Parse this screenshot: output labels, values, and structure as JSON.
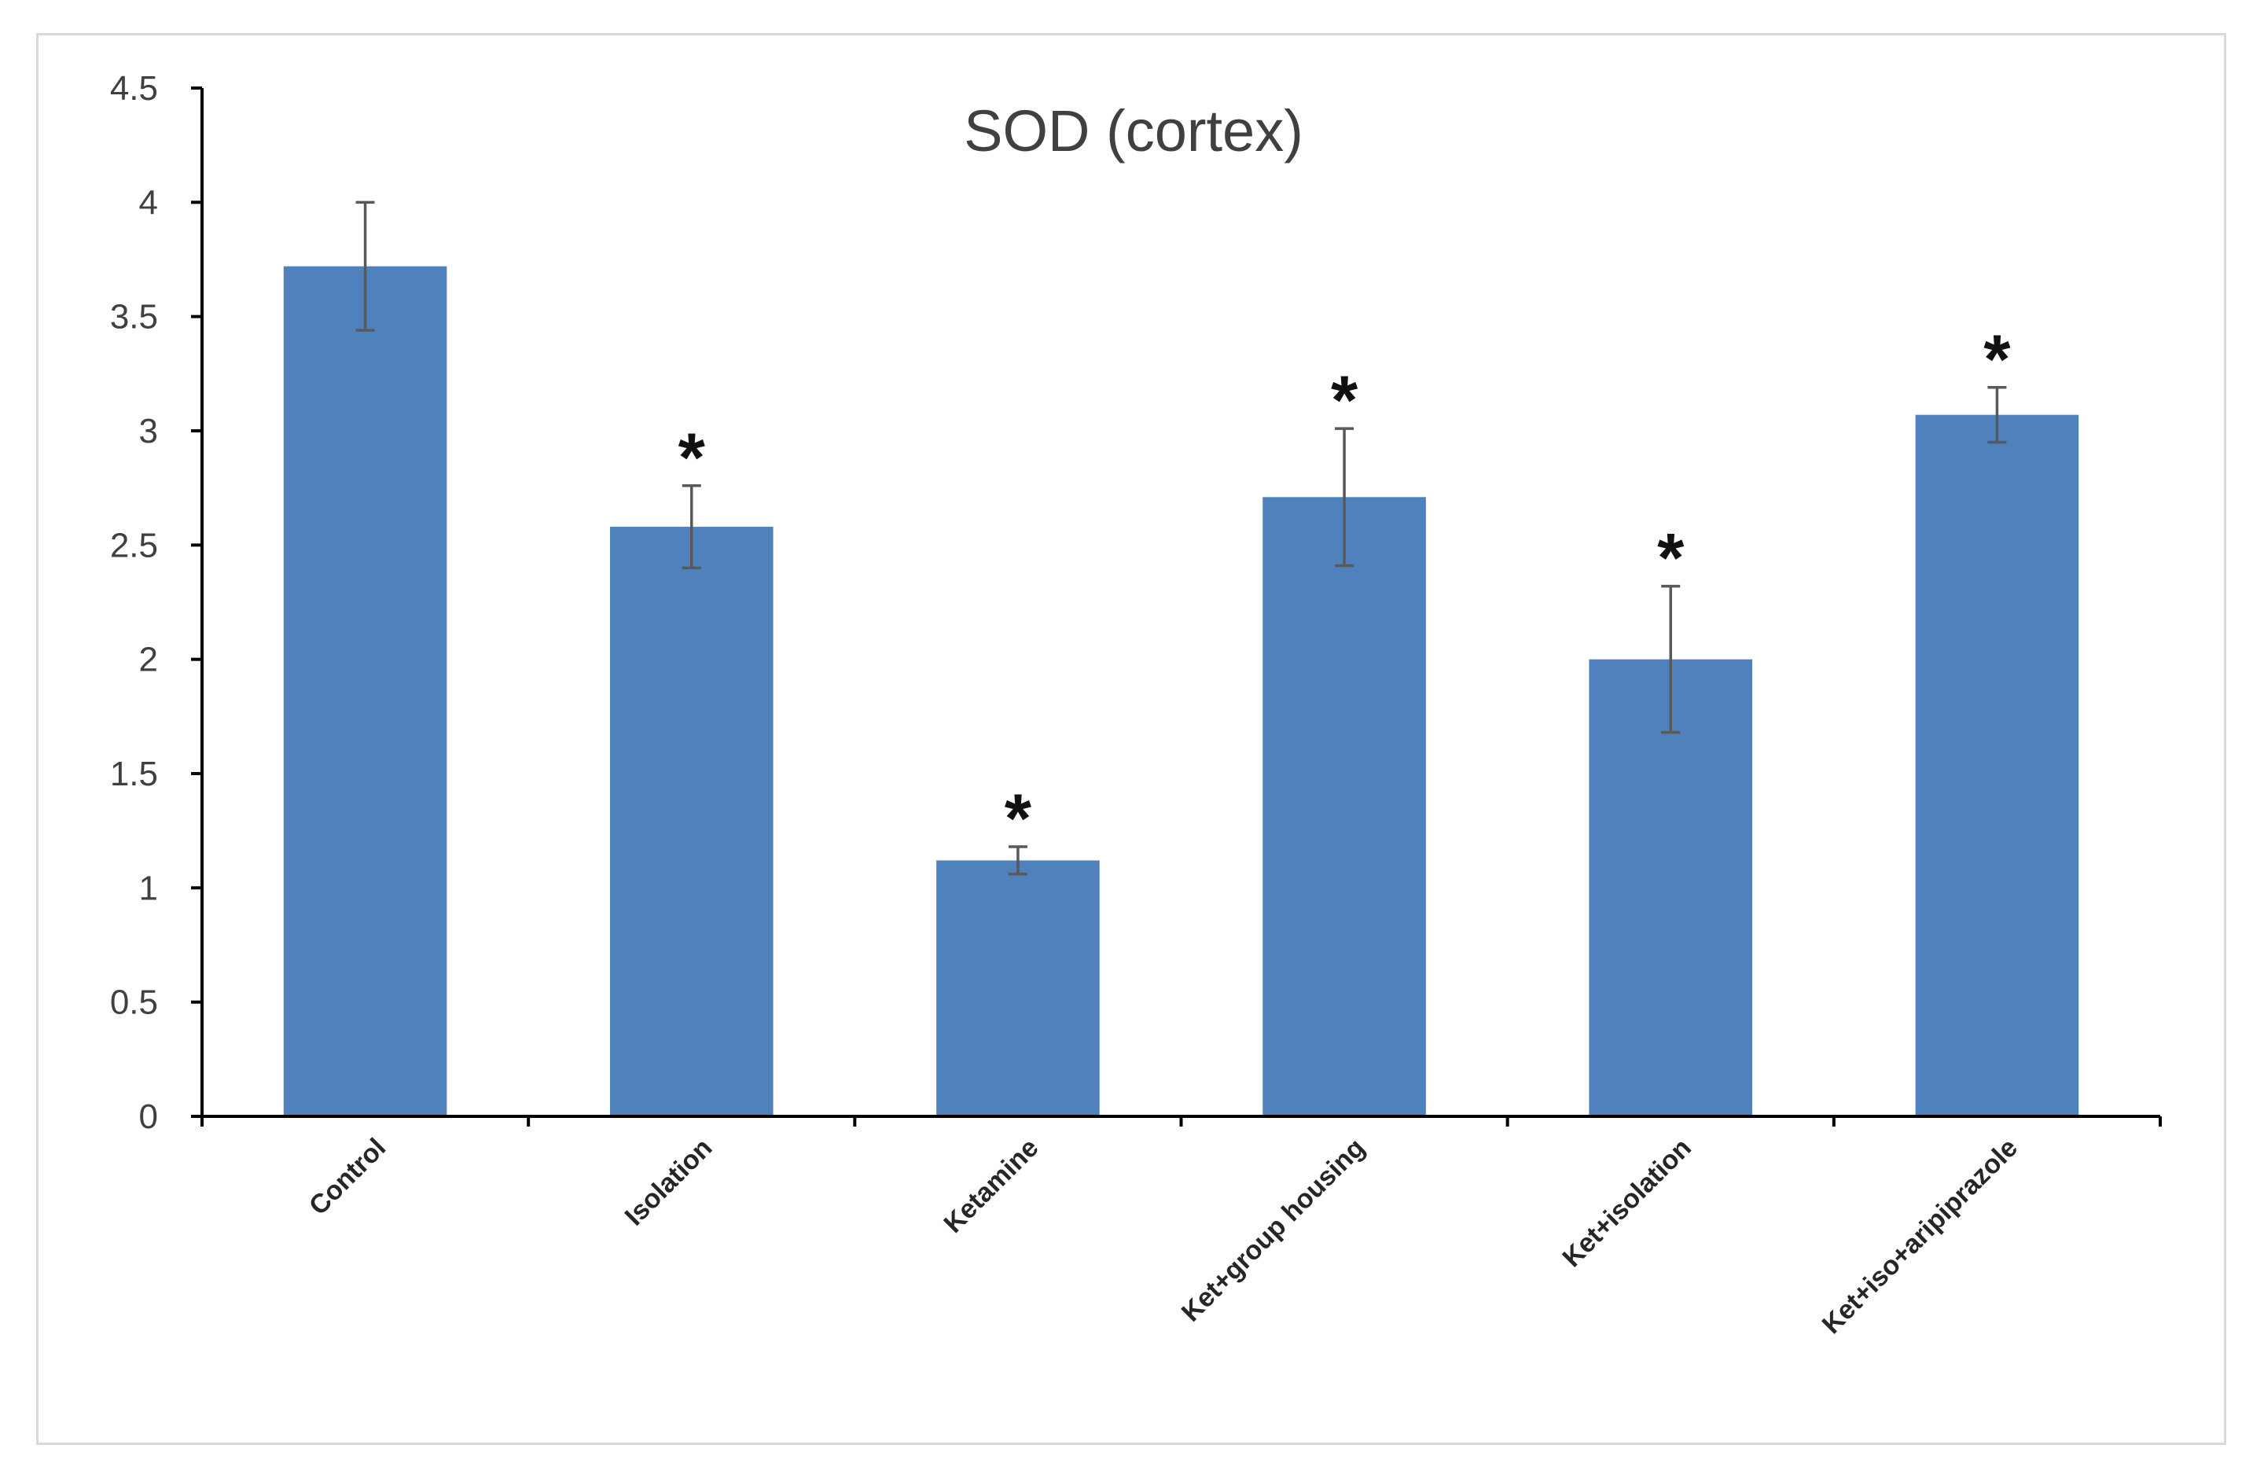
{
  "chart_data": {
    "type": "bar",
    "title": "SOD (cortex)",
    "xlabel": "",
    "ylabel": "",
    "categories": [
      "Control",
      "Isolation",
      "Ketamine",
      "Ket+group housing",
      "Ket+isolation",
      "Ket+iso+aripiprazole"
    ],
    "values": [
      3.72,
      2.58,
      1.12,
      2.71,
      2.0,
      3.07
    ],
    "errors": [
      0.28,
      0.18,
      0.06,
      0.3,
      0.32,
      0.12
    ],
    "significance": [
      "",
      "*",
      "*",
      "*",
      "*",
      "*"
    ],
    "ylim": [
      0,
      4.5
    ],
    "yticks": [
      0,
      0.5,
      1,
      1.5,
      2,
      2.5,
      3,
      3.5,
      4,
      4.5
    ],
    "ytick_labels": [
      "0",
      "0.5",
      "1",
      "1.5",
      "2",
      "2.5",
      "3",
      "3.5",
      "4",
      "4.5"
    ],
    "grid": false,
    "legend": "none",
    "colors": {
      "bar": "#4f81bd",
      "error_bar": "#595959",
      "axis": "#000000",
      "frame": "#d9d9d9"
    }
  }
}
